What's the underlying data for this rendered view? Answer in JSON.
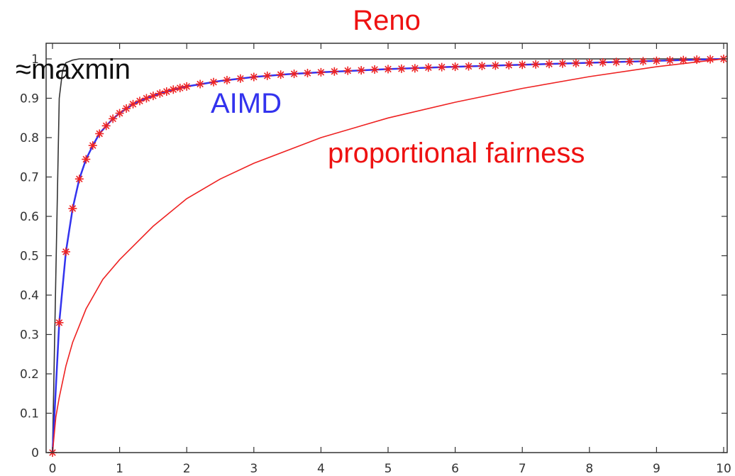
{
  "chart_data": {
    "type": "line",
    "xlim": [
      0,
      10
    ],
    "ylim": [
      0,
      1
    ],
    "xticks": [
      "0",
      "1",
      "2",
      "3",
      "4",
      "5",
      "6",
      "7",
      "8",
      "9",
      "10"
    ],
    "yticks": [
      "0",
      "0.1",
      "0.2",
      "0.3",
      "0.4",
      "0.5",
      "0.6",
      "0.7",
      "0.8",
      "0.9",
      "1"
    ],
    "grid": false,
    "annotations": {
      "reno": "Reno",
      "maxmin": "≈maxmin",
      "aimd": "AIMD",
      "proportional": "proportional fairness"
    },
    "series": [
      {
        "key": "maxmin",
        "color": "#333333",
        "style": "line",
        "x": [
          0,
          0.05,
          0.1,
          0.15,
          0.2,
          0.3,
          0.4,
          0.6,
          1,
          2,
          5,
          10
        ],
        "y": [
          0,
          0.45,
          0.9,
          0.97,
          0.99,
          0.997,
          1,
          1,
          1,
          1,
          1,
          1
        ]
      },
      {
        "key": "aimd",
        "color": "#3333ee",
        "style": "line",
        "x": [
          0,
          0.1,
          0.2,
          0.3,
          0.4,
          0.5,
          0.6,
          0.7,
          0.8,
          0.9,
          1.0,
          1.2,
          1.4,
          1.6,
          1.8,
          2.0,
          2.5,
          3,
          3.5,
          4,
          5,
          6,
          7,
          8,
          9,
          10
        ],
        "y": [
          0,
          0.33,
          0.51,
          0.62,
          0.695,
          0.745,
          0.78,
          0.81,
          0.83,
          0.848,
          0.862,
          0.885,
          0.9,
          0.912,
          0.922,
          0.93,
          0.944,
          0.954,
          0.961,
          0.966,
          0.974,
          0.98,
          0.985,
          0.99,
          0.995,
          1.0
        ]
      },
      {
        "key": "reno",
        "color": "#ee2222",
        "style": "markers",
        "marker": "*",
        "x": [
          0,
          0.1,
          0.2,
          0.3,
          0.4,
          0.5,
          0.6,
          0.7,
          0.8,
          0.9,
          1.0,
          1.1,
          1.2,
          1.3,
          1.4,
          1.5,
          1.6,
          1.7,
          1.8,
          1.9,
          2.0,
          2.2,
          2.4,
          2.6,
          2.8,
          3.0,
          3.2,
          3.4,
          3.6,
          3.8,
          4.0,
          4.2,
          4.4,
          4.6,
          4.8,
          5.0,
          5.2,
          5.4,
          5.6,
          5.8,
          6.0,
          6.2,
          6.4,
          6.6,
          6.8,
          7.0,
          7.2,
          7.4,
          7.6,
          7.8,
          8.0,
          8.2,
          8.4,
          8.6,
          8.8,
          9.0,
          9.2,
          9.4,
          9.6,
          9.8,
          10.0
        ],
        "y": [
          0,
          0.33,
          0.51,
          0.62,
          0.695,
          0.745,
          0.78,
          0.81,
          0.83,
          0.848,
          0.862,
          0.874,
          0.885,
          0.893,
          0.9,
          0.906,
          0.912,
          0.917,
          0.922,
          0.926,
          0.93,
          0.936,
          0.941,
          0.946,
          0.95,
          0.954,
          0.957,
          0.96,
          0.962,
          0.964,
          0.966,
          0.968,
          0.97,
          0.971,
          0.973,
          0.974,
          0.975,
          0.976,
          0.978,
          0.979,
          0.98,
          0.981,
          0.982,
          0.983,
          0.984,
          0.985,
          0.986,
          0.987,
          0.988,
          0.989,
          0.99,
          0.991,
          0.992,
          0.993,
          0.994,
          0.995,
          0.996,
          0.997,
          0.998,
          0.999,
          1.0
        ]
      },
      {
        "key": "proportional",
        "color": "#ee2222",
        "style": "line",
        "x": [
          0,
          0.05,
          0.1,
          0.2,
          0.3,
          0.5,
          0.75,
          1,
          1.5,
          2,
          2.5,
          3,
          4,
          5,
          6,
          7,
          8,
          9,
          10
        ],
        "y": [
          0,
          0.09,
          0.14,
          0.22,
          0.28,
          0.365,
          0.44,
          0.49,
          0.575,
          0.645,
          0.695,
          0.735,
          0.8,
          0.85,
          0.89,
          0.925,
          0.955,
          0.98,
          1.0
        ]
      }
    ]
  }
}
